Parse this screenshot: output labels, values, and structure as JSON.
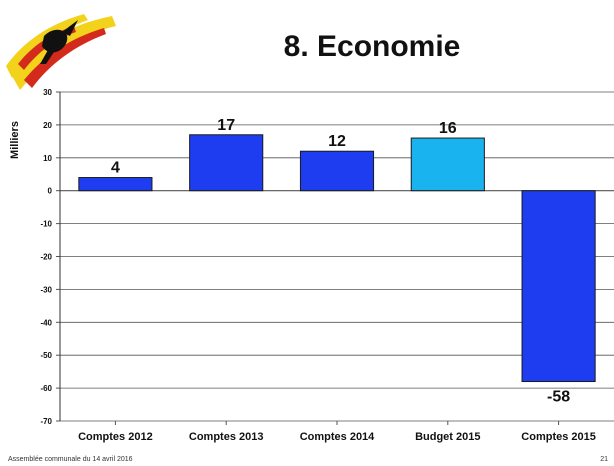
{
  "slide": {
    "title": "8. Economie",
    "footer": "Assemblée communale du 14 avril 2016",
    "page_number": "21"
  },
  "colors": {
    "bar": "#1f3df0",
    "bar_highlight": "#19b4f0",
    "bar_stroke": "#1a1a1a",
    "grid": "#555555",
    "logo_yellow": "#f3d21b",
    "logo_red": "#d42a1c",
    "logo_black": "#111111"
  },
  "chart_data": {
    "type": "bar",
    "title": "8. Economie",
    "ylabel": "Milliers",
    "xlabel": "",
    "categories": [
      "Comptes 2012",
      "Comptes 2013",
      "Comptes 2014",
      "Budget 2015",
      "Comptes 2015"
    ],
    "values": [
      4,
      17,
      12,
      16,
      -58
    ],
    "data_labels": [
      "4",
      "17",
      "12",
      "16",
      "-58"
    ],
    "highlight": [
      false,
      false,
      false,
      true,
      false
    ],
    "ylim": [
      -70,
      30
    ],
    "yticks": [
      30,
      20,
      10,
      0,
      -10,
      -20,
      -30,
      -40,
      -50,
      -60,
      -70
    ],
    "ytick_labels": [
      "30",
      "20",
      "10",
      "0",
      "-10",
      "-20",
      "-30",
      "-40",
      "-50",
      "-60",
      "-70"
    ],
    "grid": true,
    "legend": "none"
  }
}
